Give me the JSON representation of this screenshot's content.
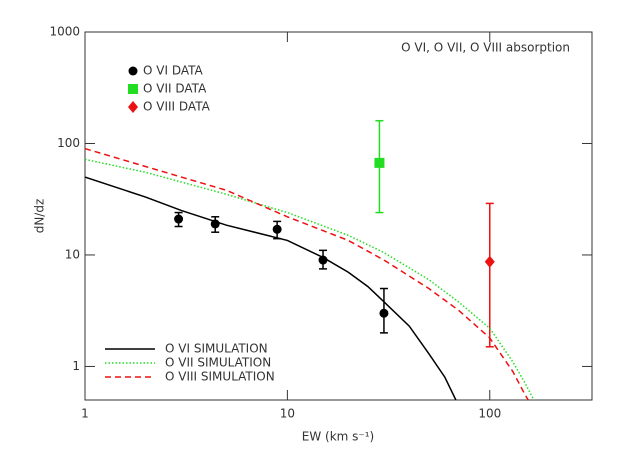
{
  "chart_data": {
    "type": "line",
    "annotation": "O VI, O VII, O VIII absorption",
    "x_label": "EW (km s⁻¹)",
    "y_label": "dN/dz",
    "xlog": true,
    "ylog": true,
    "xlim": [
      1,
      320
    ],
    "ylim": [
      0.5,
      1000
    ],
    "xticks": [
      1,
      10,
      100
    ],
    "yticks": [
      1,
      10,
      100,
      1000
    ],
    "legend": {
      "markers": "upper left",
      "lines": "lower left"
    },
    "series": [
      {
        "name": "O VI DATA",
        "color": "#000000",
        "marker": "circle",
        "x": [
          2.9,
          4.4,
          8.9,
          15,
          30
        ],
        "values": [
          21,
          19,
          17,
          9,
          3
        ],
        "ylow": [
          18,
          16,
          14,
          7.5,
          2
        ],
        "yhigh": [
          24,
          22,
          20,
          11,
          5
        ]
      },
      {
        "name": "O VII DATA",
        "color": "#22dd22",
        "marker": "square",
        "x": [
          28.5
        ],
        "values": [
          67
        ],
        "ylow": [
          24
        ],
        "yhigh": [
          160
        ]
      },
      {
        "name": "O VIII DATA",
        "color": "#ee1111",
        "marker": "diamond",
        "x": [
          100
        ],
        "values": [
          8.7
        ],
        "ylow": [
          1.5
        ],
        "yhigh": [
          29
        ]
      },
      {
        "name": "O VI SIMULATION",
        "color": "#000000",
        "style": "solid",
        "x": [
          1,
          2,
          3,
          5,
          10,
          15,
          20,
          25,
          30,
          40,
          50,
          60,
          68
        ],
        "values": [
          50,
          33,
          25,
          18.5,
          13.5,
          9.5,
          7,
          5.2,
          3.8,
          2.3,
          1.3,
          0.8,
          0.5
        ]
      },
      {
        "name": "O VII SIMULATION",
        "color": "#22dd22",
        "style": "dotted",
        "x": [
          1,
          2,
          5,
          10,
          20,
          30,
          50,
          70,
          100,
          130,
          150,
          165
        ],
        "values": [
          72,
          55,
          35,
          24,
          15,
          10.5,
          6,
          3.8,
          2.2,
          1.1,
          0.7,
          0.5
        ]
      },
      {
        "name": "O VIII SIMULATION",
        "color": "#ee1111",
        "style": "dashed",
        "x": [
          1,
          2,
          5,
          10,
          20,
          30,
          50,
          70,
          100,
          130,
          150,
          155
        ],
        "values": [
          90,
          62,
          38,
          22,
          13.5,
          9,
          5,
          3.2,
          1.8,
          0.9,
          0.55,
          0.5
        ]
      }
    ]
  }
}
